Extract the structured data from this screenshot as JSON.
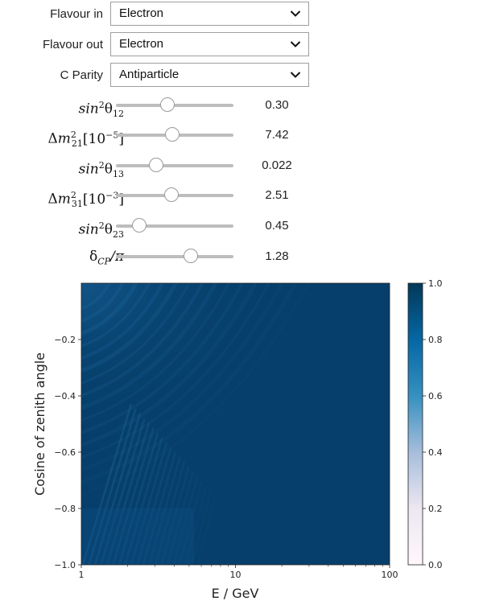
{
  "dropdowns": [
    {
      "label": "Flavour in",
      "value": "Electron",
      "icon": "chevron-down-icon"
    },
    {
      "label": "Flavour out",
      "value": "Electron",
      "icon": "chevron-down-icon"
    },
    {
      "label": "C Parity",
      "value": "Antiparticle",
      "icon": "chevron-down-icon"
    }
  ],
  "sliders": [
    {
      "value": "0.30",
      "level": 0.44
    },
    {
      "value": "7.42",
      "level": 0.48
    },
    {
      "value": "0.022",
      "level": 0.34
    },
    {
      "value": "2.51",
      "level": 0.47
    },
    {
      "value": "0.45",
      "level": 0.2
    },
    {
      "value": "1.28",
      "level": 0.64
    }
  ],
  "chart_data": {
    "type": "heatmap",
    "xlabel": "E / GeV",
    "ylabel": "Cosine of zenith angle",
    "xscale": "log",
    "xlim": [
      1,
      100
    ],
    "ylim": [
      -1.0,
      0.0
    ],
    "x_ticks": [
      "1",
      "10",
      "100"
    ],
    "y_ticks": [
      "−1.0",
      "−0.8",
      "−0.6",
      "−0.4",
      "−0.2"
    ],
    "colorbar": {
      "min": 0.0,
      "max": 1.0,
      "ticks": [
        "0.0",
        "0.2",
        "0.4",
        "0.6",
        "0.8",
        "1.0"
      ],
      "colors": {
        "low": "#fff7fb",
        "mid": "#3690c0",
        "high": "#023858"
      }
    },
    "dominant_value": 0.95,
    "oscillation_region": "low energy, cosine below -0.2"
  }
}
